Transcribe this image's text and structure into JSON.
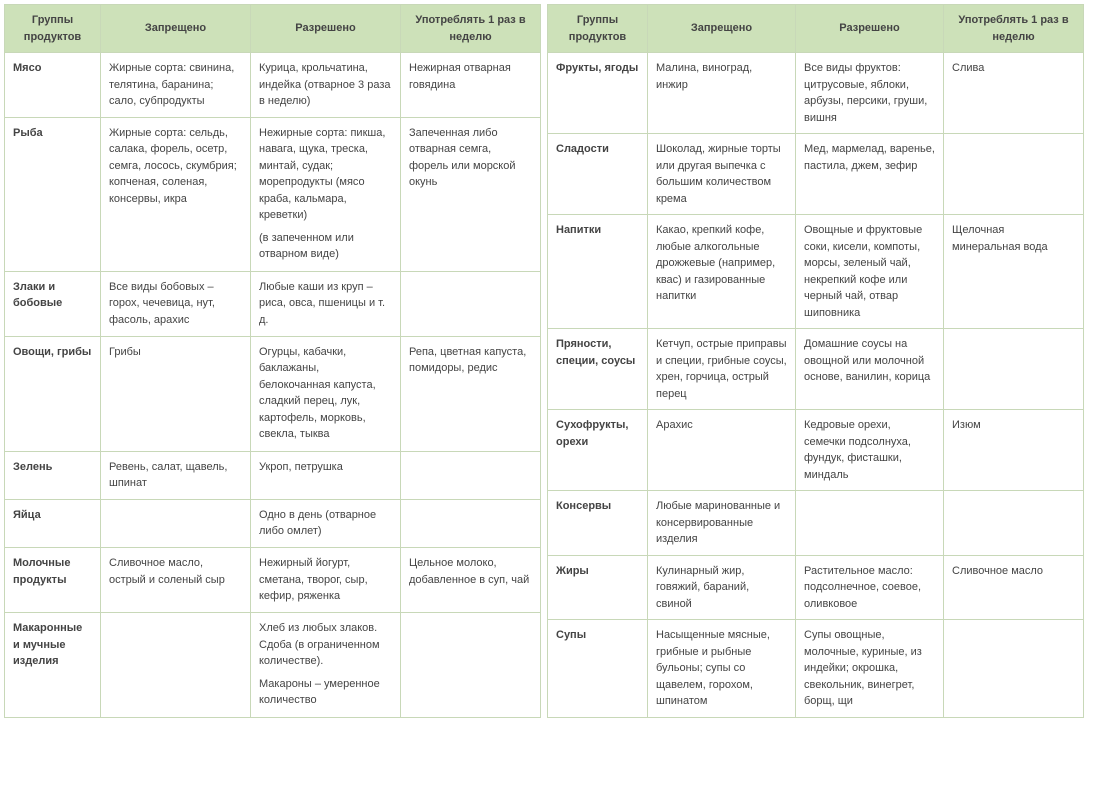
{
  "layout": {
    "left_col_widths": [
      96,
      150,
      150,
      140
    ],
    "right_col_widths": [
      100,
      148,
      148,
      140
    ],
    "header_bg": "#cde1b9",
    "border_color": "#c8d8b8",
    "text_color": "#444444",
    "font_size": 11
  },
  "headers": {
    "col1": "Группы продуктов",
    "col2": "Запрещено",
    "col3": "Разрешено",
    "col4": "Употреблять 1 раз в неделю"
  },
  "left_rows": [
    {
      "group": "Мясо",
      "forbidden": "Жирные сорта: свинина, телятина, баранина; сало, субпродукты",
      "allowed": "Курица, крольчатина, индейка (отварное 3 раза в неделю)",
      "weekly": "Нежирная отварная говядина"
    },
    {
      "group": "Рыба",
      "forbidden": "Жирные сорта: сельдь, салака, форель, осетр, семга, лосось, скумбрия; копченая, соленая, консервы, икра",
      "allowed_multi": [
        "Нежирные сорта: пикша, навага, щука, треска, минтай, судак; морепродукты (мясо краба, кальмара, креветки)",
        "(в запеченном или отварном виде)"
      ],
      "weekly": "Запеченная либо отварная семга, форель или морской окунь"
    },
    {
      "group": "Злаки и бобовые",
      "forbidden": "Все виды бобовых – горох, чечевица, нут, фасоль, арахис",
      "allowed": "Любые каши из круп – риса, овса, пшеницы и т. д.",
      "weekly": ""
    },
    {
      "group": "Овощи, грибы",
      "forbidden": "Грибы",
      "allowed": "Огурцы, кабачки, баклажаны, белокочанная капуста, сладкий перец, лук, картофель, морковь, свекла, тыква",
      "weekly": "Репа, цветная капуста, помидоры, редис"
    },
    {
      "group": "Зелень",
      "forbidden": "Ревень, салат, щавель, шпинат",
      "allowed": "Укроп, петрушка",
      "weekly": ""
    },
    {
      "group": "Яйца",
      "forbidden": "",
      "allowed": "Одно в день (отварное либо омлет)",
      "weekly": ""
    },
    {
      "group": "Молочные продукты",
      "forbidden": "Сливочное масло, острый и соленый сыр",
      "allowed": "Нежирный йогурт, сметана, творог, сыр, кефир, ряженка",
      "weekly": "Цельное молоко, добавленное в суп, чай"
    },
    {
      "group": "Макаронные и мучные изделия",
      "forbidden": "",
      "allowed_multi": [
        "Хлеб из любых злаков. Сдоба (в ограниченном количестве).",
        "Макароны – умеренное количество"
      ],
      "weekly": ""
    }
  ],
  "right_rows": [
    {
      "group": "Фрукты, ягоды",
      "forbidden": "Малина, виноград, инжир",
      "allowed": "Все виды фруктов: цитрусовые, яблоки, арбузы, персики, груши, вишня",
      "weekly": "Слива"
    },
    {
      "group": "Сладости",
      "forbidden": "Шоколад, жирные торты или другая выпечка с большим количеством крема",
      "allowed": "Мед, мармелад, варенье, пастила, джем, зефир",
      "weekly": ""
    },
    {
      "group": "Напитки",
      "forbidden": "Какао, крепкий кофе, любые алкогольные дрожжевые (например, квас) и газированные напитки",
      "allowed": "Овощные и фруктовые соки, кисели, компоты, морсы, зеленый чай, некрепкий кофе или черный чай, отвар шиповника",
      "weekly": "Щелочная минеральная вода"
    },
    {
      "group": "Пряности, специи, соусы",
      "forbidden": "Кетчуп, острые приправы и специи, грибные соусы, хрен, горчица, острый перец",
      "allowed": "Домашние соусы на овощной или молочной основе, ванилин, корица",
      "weekly": ""
    },
    {
      "group": "Сухофрукты, орехи",
      "forbidden": "Арахис",
      "allowed": "Кедровые орехи, семечки подсолнуха, фундук, фисташки, миндаль",
      "weekly": "Изюм"
    },
    {
      "group": "Консервы",
      "forbidden": "Любые маринованные и консервированные изделия",
      "allowed": "",
      "weekly": ""
    },
    {
      "group": "Жиры",
      "forbidden": "Кулинарный жир, говяжий, бараний, свиной",
      "allowed": "Растительное масло: подсолнечное, соевое, оливковое",
      "weekly": "Сливочное масло"
    },
    {
      "group": "Супы",
      "forbidden": "Насыщенные мясные, грибные и рыбные бульоны; супы со щавелем, горохом, шпинатом",
      "allowed": "Супы овощные, молочные, куриные, из индейки; окрошка, свекольник, винегрет, борщ, щи",
      "weekly": ""
    }
  ]
}
